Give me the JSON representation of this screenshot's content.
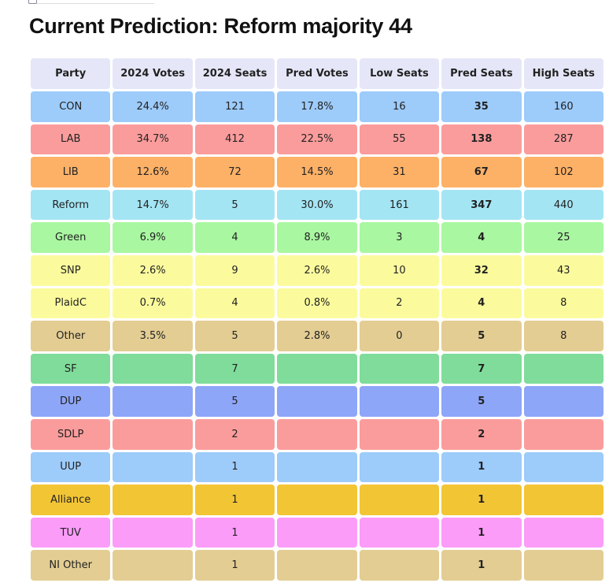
{
  "page": {
    "title": "Current Prediction: Reform majority 44"
  },
  "colors": {
    "header": "#e5e7f8",
    "CON": "#9dcbfa",
    "LAB": "#fb9c9c",
    "LIB": "#fdb167",
    "Reform": "#a4e5f4",
    "Green": "#a9f7a1",
    "SNP": "#fbfb9e",
    "PlaidC": "#fbfb9e",
    "Other": "#e3cd93",
    "SF": "#7fdc9a",
    "DUP": "#8ea6f8",
    "SDLP": "#fb9c9c",
    "UUP": "#9dcbfa",
    "Alliance": "#f2c535",
    "TUV": "#fb9cf9",
    "NI Other": "#e3cd93"
  },
  "table": {
    "headers": [
      "Party",
      "2024 Votes",
      "2024 Seats",
      "Pred Votes",
      "Low Seats",
      "Pred Seats",
      "High Seats"
    ],
    "rows": [
      {
        "party": "CON",
        "votes2024": "24.4%",
        "seats2024": "121",
        "predVotes": "17.8%",
        "lowSeats": "16",
        "predSeats": "35",
        "highSeats": "160"
      },
      {
        "party": "LAB",
        "votes2024": "34.7%",
        "seats2024": "412",
        "predVotes": "22.5%",
        "lowSeats": "55",
        "predSeats": "138",
        "highSeats": "287"
      },
      {
        "party": "LIB",
        "votes2024": "12.6%",
        "seats2024": "72",
        "predVotes": "14.5%",
        "lowSeats": "31",
        "predSeats": "67",
        "highSeats": "102"
      },
      {
        "party": "Reform",
        "votes2024": "14.7%",
        "seats2024": "5",
        "predVotes": "30.0%",
        "lowSeats": "161",
        "predSeats": "347",
        "highSeats": "440"
      },
      {
        "party": "Green",
        "votes2024": "6.9%",
        "seats2024": "4",
        "predVotes": "8.9%",
        "lowSeats": "3",
        "predSeats": "4",
        "highSeats": "25"
      },
      {
        "party": "SNP",
        "votes2024": "2.6%",
        "seats2024": "9",
        "predVotes": "2.6%",
        "lowSeats": "10",
        "predSeats": "32",
        "highSeats": "43"
      },
      {
        "party": "PlaidC",
        "votes2024": "0.7%",
        "seats2024": "4",
        "predVotes": "0.8%",
        "lowSeats": "2",
        "predSeats": "4",
        "highSeats": "8"
      },
      {
        "party": "Other",
        "votes2024": "3.5%",
        "seats2024": "5",
        "predVotes": "2.8%",
        "lowSeats": "0",
        "predSeats": "5",
        "highSeats": "8"
      },
      {
        "party": "SF",
        "votes2024": "",
        "seats2024": "7",
        "predVotes": "",
        "lowSeats": "",
        "predSeats": "7",
        "highSeats": ""
      },
      {
        "party": "DUP",
        "votes2024": "",
        "seats2024": "5",
        "predVotes": "",
        "lowSeats": "",
        "predSeats": "5",
        "highSeats": ""
      },
      {
        "party": "SDLP",
        "votes2024": "",
        "seats2024": "2",
        "predVotes": "",
        "lowSeats": "",
        "predSeats": "2",
        "highSeats": ""
      },
      {
        "party": "UUP",
        "votes2024": "",
        "seats2024": "1",
        "predVotes": "",
        "lowSeats": "",
        "predSeats": "1",
        "highSeats": ""
      },
      {
        "party": "Alliance",
        "votes2024": "",
        "seats2024": "1",
        "predVotes": "",
        "lowSeats": "",
        "predSeats": "1",
        "highSeats": ""
      },
      {
        "party": "TUV",
        "votes2024": "",
        "seats2024": "1",
        "predVotes": "",
        "lowSeats": "",
        "predSeats": "1",
        "highSeats": ""
      },
      {
        "party": "NI Other",
        "votes2024": "",
        "seats2024": "1",
        "predVotes": "",
        "lowSeats": "",
        "predSeats": "1",
        "highSeats": ""
      }
    ]
  }
}
